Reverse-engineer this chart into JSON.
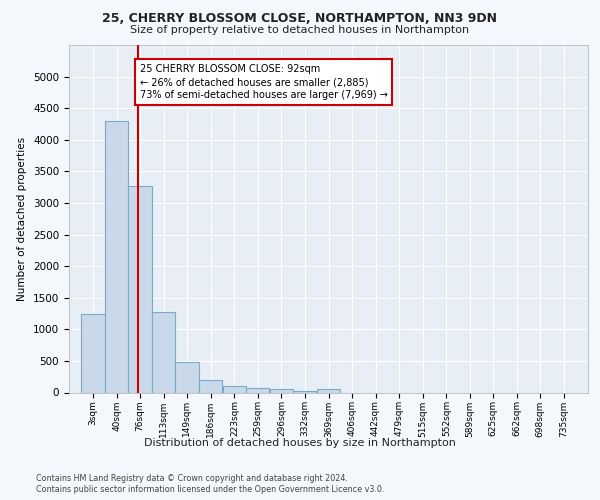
{
  "title1": "25, CHERRY BLOSSOM CLOSE, NORTHAMPTON, NN3 9DN",
  "title2": "Size of property relative to detached houses in Northampton",
  "xlabel": "Distribution of detached houses by size in Northampton",
  "ylabel": "Number of detached properties",
  "footer1": "Contains HM Land Registry data © Crown copyright and database right 2024.",
  "footer2": "Contains public sector information licensed under the Open Government Licence v3.0.",
  "bar_color": "#c9d9ea",
  "bar_edge_color": "#7aaac8",
  "property_line_color": "#cc0000",
  "annotation_text": "25 CHERRY BLOSSOM CLOSE: 92sqm\n← 26% of detached houses are smaller (2,885)\n73% of semi-detached houses are larger (7,969) →",
  "annotation_box_color": "#cc0000",
  "categories": [
    "3sqm",
    "40sqm",
    "76sqm",
    "113sqm",
    "149sqm",
    "186sqm",
    "223sqm",
    "259sqm",
    "296sqm",
    "332sqm",
    "369sqm",
    "406sqm",
    "442sqm",
    "479sqm",
    "515sqm",
    "552sqm",
    "589sqm",
    "625sqm",
    "662sqm",
    "698sqm",
    "735sqm"
  ],
  "bin_left_edges": [
    3,
    40,
    76,
    113,
    149,
    186,
    223,
    259,
    296,
    332,
    369,
    406,
    442,
    479,
    515,
    552,
    589,
    625,
    662,
    698,
    735
  ],
  "bin_width": 37,
  "values": [
    1250,
    4300,
    3270,
    1270,
    480,
    200,
    100,
    70,
    50,
    30,
    50,
    0,
    0,
    0,
    0,
    0,
    0,
    0,
    0,
    0,
    0
  ],
  "ylim": [
    0,
    5500
  ],
  "yticks": [
    0,
    500,
    1000,
    1500,
    2000,
    2500,
    3000,
    3500,
    4000,
    4500,
    5000
  ],
  "bg_color": "#f4f7fb",
  "plot_bg_color": "#e8eef5",
  "grid_color": "#ffffff",
  "property_sqm": 92
}
